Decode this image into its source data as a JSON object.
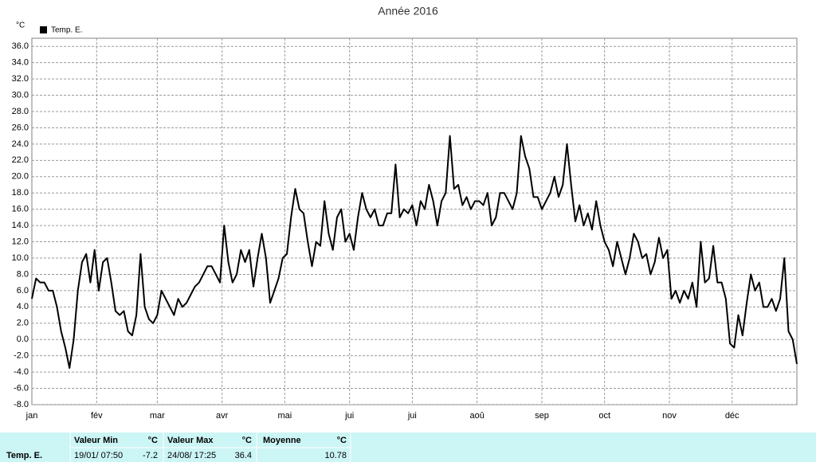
{
  "chart_data": {
    "type": "line",
    "title": "Année 2016",
    "y_label": "°C",
    "xlim": [
      0,
      366
    ],
    "xticks": [
      {
        "value": 0,
        "label": "jan"
      },
      {
        "value": 31,
        "label": "fév"
      },
      {
        "value": 60,
        "label": "mar"
      },
      {
        "value": 91,
        "label": "avr"
      },
      {
        "value": 121,
        "label": "mai"
      },
      {
        "value": 152,
        "label": "jui"
      },
      {
        "value": 182,
        "label": "jui"
      },
      {
        "value": 213,
        "label": "aoû"
      },
      {
        "value": 244,
        "label": "sep"
      },
      {
        "value": 274,
        "label": "oct"
      },
      {
        "value": 305,
        "label": "nov"
      },
      {
        "value": 335,
        "label": "déc"
      }
    ],
    "ylim": [
      -8,
      37
    ],
    "yticks": [
      {
        "value": -8,
        "label": "-8.0"
      },
      {
        "value": -6,
        "label": "-6.0"
      },
      {
        "value": -4,
        "label": "-4.0"
      },
      {
        "value": -2,
        "label": "-2.0"
      },
      {
        "value": 0,
        "label": "0.0"
      },
      {
        "value": 2,
        "label": "2.0"
      },
      {
        "value": 4,
        "label": "4.0"
      },
      {
        "value": 6,
        "label": "6.0"
      },
      {
        "value": 8,
        "label": "8.0"
      },
      {
        "value": 10,
        "label": "10.0"
      },
      {
        "value": 12,
        "label": "12.0"
      },
      {
        "value": 14,
        "label": "14.0"
      },
      {
        "value": 16,
        "label": "16.0"
      },
      {
        "value": 18,
        "label": "18.0"
      },
      {
        "value": 20,
        "label": "20.0"
      },
      {
        "value": 22,
        "label": "22.0"
      },
      {
        "value": 24,
        "label": "24.0"
      },
      {
        "value": 26,
        "label": "26.0"
      },
      {
        "value": 28,
        "label": "28.0"
      },
      {
        "value": 30,
        "label": "30.0"
      },
      {
        "value": 32,
        "label": "32.0"
      },
      {
        "value": 34,
        "label": "34.0"
      },
      {
        "value": 36,
        "label": "36.0"
      }
    ],
    "grid": true,
    "x": [
      0,
      2,
      4,
      6,
      8,
      10,
      12,
      14,
      16,
      18,
      20,
      22,
      24,
      26,
      28,
      30,
      32,
      34,
      36,
      38,
      40,
      42,
      44,
      46,
      48,
      50,
      52,
      54,
      56,
      58,
      60,
      62,
      64,
      66,
      68,
      70,
      72,
      74,
      76,
      78,
      80,
      82,
      84,
      86,
      88,
      90,
      92,
      94,
      96,
      98,
      100,
      102,
      104,
      106,
      108,
      110,
      112,
      114,
      116,
      118,
      120,
      122,
      124,
      126,
      128,
      130,
      132,
      134,
      136,
      138,
      140,
      142,
      144,
      146,
      148,
      150,
      152,
      154,
      156,
      158,
      160,
      162,
      164,
      166,
      168,
      170,
      172,
      174,
      176,
      178,
      180,
      182,
      184,
      186,
      188,
      190,
      192,
      194,
      196,
      198,
      200,
      202,
      204,
      206,
      208,
      210,
      212,
      214,
      216,
      218,
      220,
      222,
      224,
      226,
      228,
      230,
      232,
      234,
      236,
      238,
      240,
      242,
      244,
      246,
      248,
      250,
      252,
      254,
      256,
      258,
      260,
      262,
      264,
      266,
      268,
      270,
      272,
      274,
      276,
      278,
      280,
      282,
      284,
      286,
      288,
      290,
      292,
      294,
      296,
      298,
      300,
      302,
      304,
      306,
      308,
      310,
      312,
      314,
      316,
      318,
      320,
      322,
      324,
      326,
      328,
      330,
      332,
      334,
      336,
      338,
      340,
      342,
      344,
      346,
      348,
      350,
      352,
      354,
      356,
      358,
      360,
      362,
      364,
      366
    ],
    "series": [
      {
        "name": "Temp. E.",
        "color": "#000000",
        "values": [
          5,
          7.5,
          7,
          7,
          6,
          6,
          4,
          1,
          -1,
          -3.5,
          0,
          6,
          9.5,
          10.5,
          7,
          11,
          6,
          9.5,
          10,
          7,
          3.5,
          3,
          3.5,
          1,
          0.5,
          3,
          10.5,
          4,
          2.5,
          2,
          3,
          6,
          5,
          4,
          3,
          5,
          4,
          4.5,
          5.5,
          6.5,
          7,
          8,
          9,
          9,
          8,
          7,
          14,
          9.5,
          7,
          8,
          11,
          9.5,
          11,
          6.5,
          10,
          13,
          10,
          4.5,
          6,
          7.5,
          10,
          10.5,
          15,
          18.5,
          16,
          15.5,
          12,
          9,
          12,
          11.5,
          17,
          13,
          11,
          15,
          16,
          12,
          13,
          11,
          15,
          18,
          16,
          15,
          16,
          14,
          14,
          15.5,
          15.5,
          21.5,
          15,
          16,
          15.5,
          16.5,
          14,
          17,
          16,
          19,
          17,
          14,
          17,
          18,
          25,
          18.5,
          19,
          16.5,
          17.5,
          16,
          17,
          17,
          16.5,
          18,
          14,
          15,
          18,
          18,
          17,
          16,
          18,
          25,
          22.5,
          21,
          17.5,
          17.5,
          16,
          17,
          18,
          20,
          17.5,
          19,
          24,
          19,
          14.5,
          16.5,
          14,
          15.5,
          13.5,
          17,
          14,
          12,
          11,
          9,
          12,
          10,
          8,
          10,
          13,
          12,
          10,
          10.5,
          8,
          9.5,
          12.5,
          10,
          11,
          5,
          6,
          4.5,
          6,
          5,
          7,
          4,
          12,
          7,
          7.5,
          11.5,
          7,
          7,
          5,
          -0.5,
          -1,
          3,
          0.5,
          4.5,
          8,
          6,
          7,
          4,
          4,
          5,
          3.5,
          5,
          10,
          1,
          0,
          -3
        ]
      }
    ]
  },
  "table": {
    "headers": [
      "Valeur Min",
      "°C",
      "Valeur Max",
      "°C",
      "Moyenne",
      "°C"
    ],
    "row_label": "Temp. E.",
    "cells": [
      "19/01/ 07:50",
      "-7.2",
      "24/08/ 17:25",
      "36.4",
      "10.78"
    ]
  }
}
